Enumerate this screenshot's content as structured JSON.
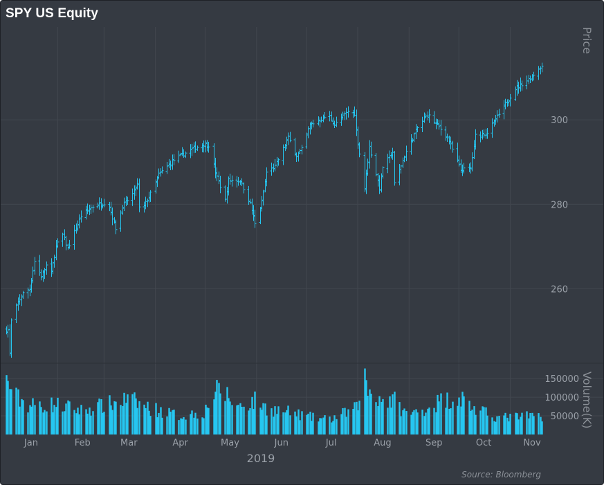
{
  "title": "SPY US Equity",
  "source": "Source: Bloomberg",
  "colors": {
    "background": "#353a42",
    "series": "#26c6f0",
    "grid": "#42474f",
    "text": "#9aa0a8"
  },
  "chart_data": {
    "type": "ohlc",
    "title": "SPY US Equity",
    "x_axis": {
      "months": [
        "Jan",
        "Feb",
        "Mar",
        "Apr",
        "May",
        "Jun",
        "Jul",
        "Aug",
        "Sep",
        "Oct",
        "Nov"
      ],
      "year_label": "2019",
      "range": [
        "2019-01-01",
        "2019-11-20"
      ]
    },
    "price_axis": {
      "title": "Price",
      "ticks": [
        "260",
        "280",
        "300"
      ],
      "ylim": [
        243,
        322
      ]
    },
    "volume_axis": {
      "title": "Volume(K)",
      "ticks": [
        "50000",
        "100000",
        "150000"
      ],
      "ylim": [
        0,
        180000
      ]
    },
    "grid": true,
    "price_waypoints": [
      [
        "2019-01-02",
        250.2
      ],
      [
        "2019-01-03",
        244.5
      ],
      [
        "2019-01-04",
        252.4
      ],
      [
        "2019-01-08",
        256.8
      ],
      [
        "2019-01-11",
        258.9
      ],
      [
        "2019-01-15",
        260.0
      ],
      [
        "2019-01-18",
        266.5
      ],
      [
        "2019-01-22",
        262.9
      ],
      [
        "2019-01-25",
        265.5
      ],
      [
        "2019-01-28",
        263.8
      ],
      [
        "2019-01-31",
        270.0
      ],
      [
        "2019-02-04",
        272.8
      ],
      [
        "2019-02-07",
        269.5
      ],
      [
        "2019-02-08",
        270.5
      ],
      [
        "2019-02-15",
        277.2
      ],
      [
        "2019-02-22",
        279.5
      ],
      [
        "2019-03-01",
        280.3
      ],
      [
        "2019-03-04",
        279.5
      ],
      [
        "2019-03-08",
        274.3
      ],
      [
        "2019-03-12",
        279.5
      ],
      [
        "2019-03-18",
        282.4
      ],
      [
        "2019-03-21",
        284.7
      ],
      [
        "2019-03-22",
        279.1
      ],
      [
        "2019-03-25",
        279.6
      ],
      [
        "2019-03-29",
        282.5
      ],
      [
        "2019-04-03",
        287.0
      ],
      [
        "2019-04-12",
        290.5
      ],
      [
        "2019-04-23",
        293.1
      ],
      [
        "2019-04-30",
        294.2
      ],
      [
        "2019-05-03",
        294.0
      ],
      [
        "2019-05-07",
        287.5
      ],
      [
        "2019-05-13",
        280.9
      ],
      [
        "2019-05-15",
        285.7
      ],
      [
        "2019-05-22",
        285.6
      ],
      [
        "2019-05-28",
        280.2
      ],
      [
        "2019-05-31",
        275.3
      ],
      [
        "2019-06-04",
        280.5
      ],
      [
        "2019-06-07",
        287.6
      ],
      [
        "2019-06-12",
        288.9
      ],
      [
        "2019-06-20",
        295.8
      ],
      [
        "2019-06-25",
        291.5
      ],
      [
        "2019-06-28",
        293.0
      ],
      [
        "2019-07-03",
        298.8
      ],
      [
        "2019-07-12",
        300.6
      ],
      [
        "2019-07-15",
        300.8
      ],
      [
        "2019-07-18",
        298.8
      ],
      [
        "2019-07-26",
        302.0
      ],
      [
        "2019-07-30",
        301.5
      ],
      [
        "2019-07-31",
        297.4
      ],
      [
        "2019-08-05",
        283.8
      ],
      [
        "2019-08-08",
        293.6
      ],
      [
        "2019-08-14",
        283.9
      ],
      [
        "2019-08-16",
        288.8
      ],
      [
        "2019-08-22",
        292.4
      ],
      [
        "2019-08-23",
        284.8
      ],
      [
        "2019-08-30",
        292.5
      ],
      [
        "2019-09-06",
        298.1
      ],
      [
        "2019-09-12",
        301.3
      ],
      [
        "2019-09-19",
        298.3
      ],
      [
        "2019-09-24",
        295.9
      ],
      [
        "2019-10-02",
        288.1
      ],
      [
        "2019-10-08",
        288.5
      ],
      [
        "2019-10-11",
        296.3
      ],
      [
        "2019-10-18",
        297.0
      ],
      [
        "2019-10-28",
        303.1
      ],
      [
        "2019-11-04",
        307.4
      ],
      [
        "2019-11-13",
        309.9
      ],
      [
        "2019-11-19",
        312.6
      ]
    ],
    "volume_waypoints": [
      [
        "2019-01-02",
        140000
      ],
      [
        "2019-01-07",
        100000
      ],
      [
        "2019-01-15",
        78000
      ],
      [
        "2019-01-31",
        80000
      ],
      [
        "2019-02-15",
        65000
      ],
      [
        "2019-03-08",
        85000
      ],
      [
        "2019-03-15",
        95000
      ],
      [
        "2019-03-29",
        70000
      ],
      [
        "2019-04-15",
        50000
      ],
      [
        "2019-04-30",
        60000
      ],
      [
        "2019-05-07",
        115000
      ],
      [
        "2019-05-13",
        110000
      ],
      [
        "2019-05-20",
        75000
      ],
      [
        "2019-05-31",
        90000
      ],
      [
        "2019-06-07",
        70000
      ],
      [
        "2019-06-20",
        60000
      ],
      [
        "2019-07-05",
        45000
      ],
      [
        "2019-07-15",
        40000
      ],
      [
        "2019-07-31",
        70000
      ],
      [
        "2019-08-05",
        150000
      ],
      [
        "2019-08-07",
        120000
      ],
      [
        "2019-08-15",
        95000
      ],
      [
        "2019-08-23",
        90000
      ],
      [
        "2019-08-30",
        55000
      ],
      [
        "2019-09-06",
        60000
      ],
      [
        "2019-09-20",
        90000
      ],
      [
        "2019-10-02",
        100000
      ],
      [
        "2019-10-11",
        65000
      ],
      [
        "2019-10-25",
        45000
      ],
      [
        "2019-11-19",
        50000
      ]
    ]
  }
}
